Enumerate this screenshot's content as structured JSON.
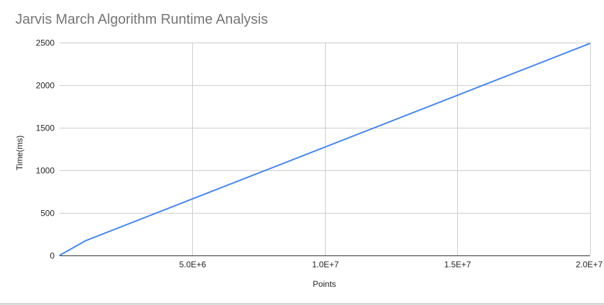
{
  "chart_data": {
    "type": "line",
    "title": "Jarvis March Algorithm Runtime Analysis",
    "xlabel": "Points",
    "ylabel": "Time(ms)",
    "xlim": [
      0,
      20000000
    ],
    "ylim": [
      0,
      2500
    ],
    "x_ticks": [
      5000000,
      10000000,
      15000000,
      20000000
    ],
    "x_tick_labels": [
      "5.0E+6",
      "1.0E+7",
      "1.5E+7",
      "2.0E+7"
    ],
    "y_ticks": [
      0,
      500,
      1000,
      1500,
      2000,
      2500
    ],
    "y_tick_labels": [
      "0",
      "500",
      "1000",
      "1500",
      "2000",
      "2500"
    ],
    "grid": true,
    "legend": "none",
    "series": [
      {
        "color": "#4285f4",
        "x": [
          0,
          1000000,
          20000000
        ],
        "y": [
          0,
          175,
          2490
        ]
      }
    ]
  }
}
